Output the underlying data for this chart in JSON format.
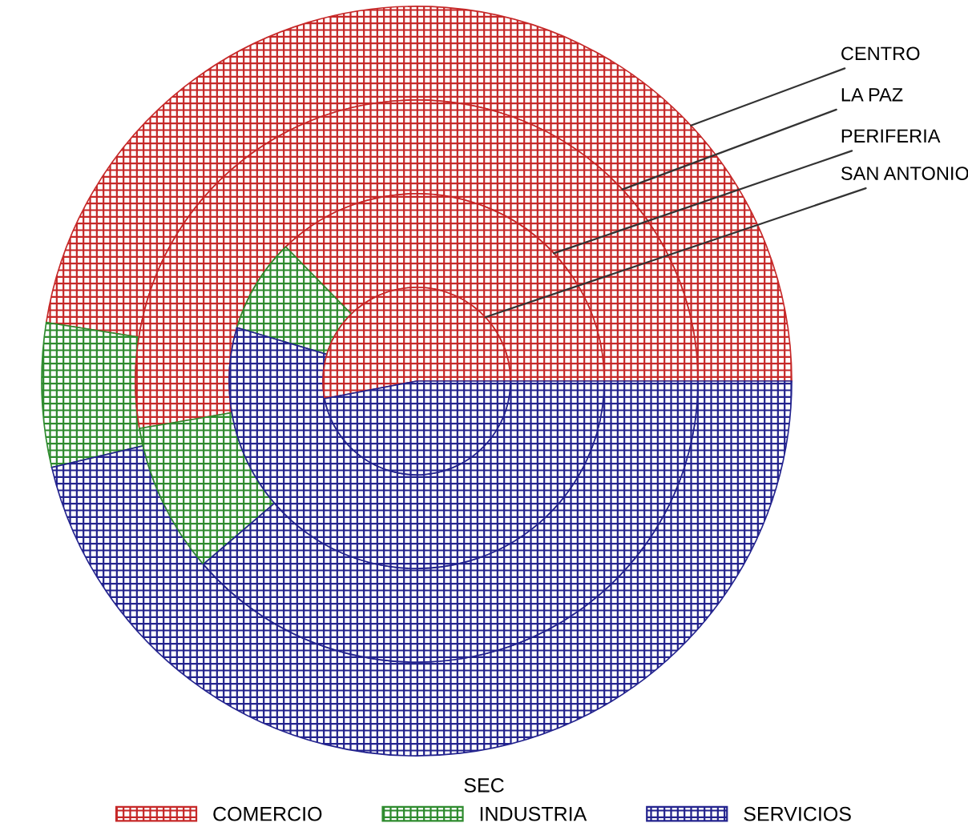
{
  "chart_data": {
    "type": "donut",
    "legend_title": "SEC",
    "legend": "bottom",
    "categories": [
      "COMERCIO",
      "INDUSTRIA",
      "SERVICIOS"
    ],
    "colors": [
      "#c62828",
      "#2e8b2e",
      "#23238e"
    ],
    "series": [
      {
        "name": "CENTRO",
        "values": [
          47.5,
          6.2,
          46.3
        ]
      },
      {
        "name": "LA PAZ",
        "values": [
          52.7,
          8.6,
          38.7
        ]
      },
      {
        "name": "PERIFERIA",
        "values": [
          37.3,
          8.1,
          54.6
        ]
      },
      {
        "name": "SAN ANTONIO",
        "values": [
          53,
          0,
          47
        ]
      }
    ]
  }
}
